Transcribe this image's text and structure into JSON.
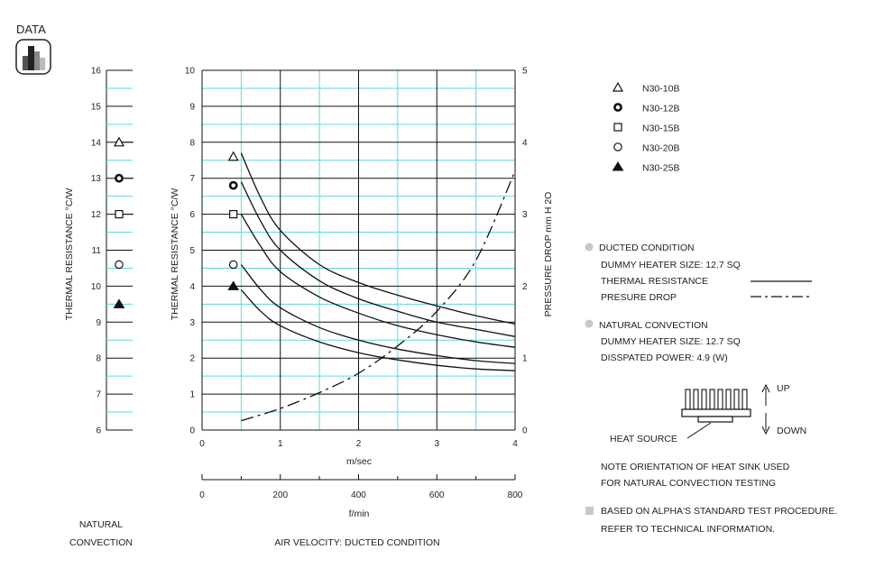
{
  "header": {
    "label": "DATA",
    "icon": "bar-chart-icon"
  },
  "chart_data": [
    {
      "type": "scatter",
      "title": "",
      "xlabel": "NATURAL CONVECTION",
      "ylabel": "THERMAL RESISTANCE  °C/W",
      "ylim": [
        6,
        16
      ],
      "yticks": [
        "6",
        "7",
        "8",
        "9",
        "10",
        "11",
        "12",
        "13",
        "14",
        "15",
        "16"
      ],
      "series": [
        {
          "name": "N30-10B",
          "marker": "triangle-open",
          "y": 14.0
        },
        {
          "name": "N30-12B",
          "marker": "circle-bold",
          "y": 13.0
        },
        {
          "name": "N30-15B",
          "marker": "square-open",
          "y": 12.0
        },
        {
          "name": "N30-20B",
          "marker": "circle-open",
          "y": 10.6
        },
        {
          "name": "N30-25B",
          "marker": "triangle-filled",
          "y": 9.5
        }
      ]
    },
    {
      "type": "line",
      "title": "",
      "xlabel": "m/sec",
      "xlabel2": "f/min",
      "caption": "AIR VELOCITY:  DUCTED CONDITION",
      "ylabel": "THERMAL RESISTANCE  °C/W",
      "ylabel_right": "PRESSURE  DROP    mm H 2O",
      "xlim": [
        0,
        4
      ],
      "ylim": [
        0,
        10
      ],
      "ylim_right": [
        0,
        5
      ],
      "xticks": [
        "0",
        "1",
        "2",
        "3",
        "4"
      ],
      "xticks2": [
        "0",
        "200",
        "400",
        "600",
        "800"
      ],
      "xticks2_values": [
        0,
        200,
        400,
        600,
        800
      ],
      "yticks": [
        "0",
        "1",
        "2",
        "3",
        "4",
        "5",
        "6",
        "7",
        "8",
        "9",
        "10"
      ],
      "yticks_right": [
        "0",
        "1",
        "2",
        "3",
        "4",
        "5"
      ],
      "grid": true,
      "start_markers": [
        {
          "name": "N30-10B",
          "marker": "triangle-open",
          "y": 7.6
        },
        {
          "name": "N30-12B",
          "marker": "circle-bold",
          "y": 6.8
        },
        {
          "name": "N30-15B",
          "marker": "square-open",
          "y": 6.0
        },
        {
          "name": "N30-20B",
          "marker": "circle-open",
          "y": 4.6
        },
        {
          "name": "N30-25B",
          "marker": "triangle-filled",
          "y": 4.0
        }
      ],
      "marker_x": 0.4,
      "series": [
        {
          "kind": "thermal",
          "x": [
            0.5,
            0.75,
            1.0,
            1.5,
            2.0,
            2.5,
            3.0,
            3.5,
            4.0
          ],
          "y": [
            7.7,
            6.45,
            5.55,
            4.6,
            4.1,
            3.75,
            3.45,
            3.18,
            2.95
          ]
        },
        {
          "kind": "thermal",
          "x": [
            0.5,
            0.75,
            1.0,
            1.5,
            2.0,
            2.5,
            3.0,
            3.5,
            4.0
          ],
          "y": [
            6.9,
            5.8,
            5.0,
            4.15,
            3.65,
            3.3,
            3.0,
            2.8,
            2.6
          ]
        },
        {
          "kind": "thermal",
          "x": [
            0.5,
            0.75,
            1.0,
            1.5,
            2.0,
            2.5,
            3.0,
            3.5,
            4.0
          ],
          "y": [
            6.0,
            5.1,
            4.4,
            3.7,
            3.25,
            2.9,
            2.65,
            2.45,
            2.3
          ]
        },
        {
          "kind": "thermal",
          "x": [
            0.5,
            0.75,
            1.0,
            1.5,
            2.0,
            2.5,
            3.0,
            3.5,
            4.0
          ],
          "y": [
            4.6,
            3.9,
            3.4,
            2.85,
            2.5,
            2.25,
            2.07,
            1.93,
            1.85
          ]
        },
        {
          "kind": "thermal",
          "x": [
            0.5,
            0.75,
            1.0,
            1.5,
            2.0,
            2.5,
            3.0,
            3.5,
            4.0
          ],
          "y": [
            3.9,
            3.3,
            2.9,
            2.45,
            2.15,
            1.95,
            1.8,
            1.7,
            1.65
          ]
        },
        {
          "kind": "pressure",
          "axis": "right",
          "x": [
            0.5,
            1.0,
            1.5,
            2.0,
            2.5,
            3.0,
            3.5,
            4.0
          ],
          "y": [
            0.13,
            0.3,
            0.52,
            0.79,
            1.17,
            1.65,
            2.36,
            3.6
          ]
        }
      ]
    }
  ],
  "legend": [
    {
      "name": "N30-10B",
      "marker": "triangle-open"
    },
    {
      "name": "N30-12B",
      "marker": "circle-bold"
    },
    {
      "name": "N30-15B",
      "marker": "square-open"
    },
    {
      "name": "N30-20B",
      "marker": "circle-open"
    },
    {
      "name": "N30-25B",
      "marker": "triangle-filled"
    }
  ],
  "notes": {
    "ducted_title": "DUCTED CONDITION",
    "ducted_heater": "DUMMY HEATER SIZE: 12.7 SQ",
    "thermal_label": "THERMAL RESISTANCE",
    "pressure_label": "PRESURE DROP",
    "natural_title": "NATURAL CONVECTION",
    "natural_heater": "DUMMY HEATER SIZE: 12.7 SQ",
    "natural_power": "DISSPATED POWER: 4.9 (W)",
    "up_label": "UP",
    "down_label": "DOWN",
    "heat_source": "HEAT SOURCE",
    "orient_1": "NOTE ORIENTATION OF HEAT SINK USED",
    "orient_2": "FOR NATURAL CONVECTION TESTING",
    "std_1": "BASED ON ALPHA'S STANDARD TEST PROCEDURE.",
    "std_2": "REFER TO TECHNICAL INFORMATION."
  },
  "colors": {
    "grid": "#5fd6e6",
    "ink": "#111111",
    "bullet": "#c8c8c8"
  }
}
